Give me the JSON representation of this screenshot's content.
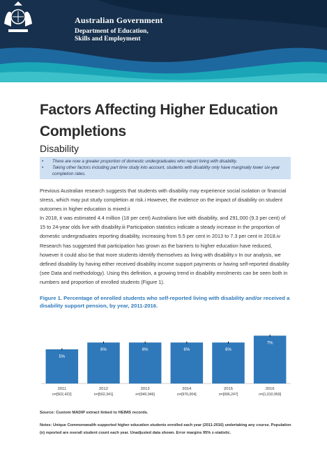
{
  "header": {
    "gov_title": "Australian Government",
    "dept_line1": "Department of Education,",
    "dept_line2": "Skills and Employment",
    "brand_colors": {
      "navy": "#16304d",
      "teal": "#1aa6b7",
      "blue": "#1e6fa8"
    }
  },
  "title": "Factors Affecting Higher Education Completions",
  "section": "Disability",
  "key_points": [
    "There are now a greater proportion of domestic undergraduates who report living with disability.",
    "Taking other factors including part time study into account, students with disability only have marginally lower six-year completion rates."
  ],
  "paragraphs": [
    "Previous Australian research suggests that students with disability may experience social isolation or financial stress, which may put study completion at risk.i However, the evidence on the impact of disability on student outcomes in higher education is mixed.ii",
    "In 2018, it was estimated 4.4 million (18 per cent) Australians live with disability, and 291,000 (9.3 per cent) of 15 to 24-year olds live with disability.iii Participation statistics indicate a steady increase in the proportion of domestic undergraduates reporting disability, increasing from 5.5 per cent in 2013 to 7.3 per cent in 2018.iv Research has suggested that participation has grown as the barriers to higher education have reduced, however it could also be that more students identify themselves as living with disability.v In our analysis, we defined disability by having either received disability income support payments or having self-reported disability (see Data and methodology). Using this definition, a growing trend in disability enrolments can be seen both in numbers and proportion of enrolled students (Figure 1)."
  ],
  "figure_title": "Figure 1. Percentage of enrolled students who self-reported living with disability and/or received a disability support pension, by year, 2011-2016.",
  "chart_data": {
    "type": "bar",
    "categories": [
      "2011",
      "2012",
      "2013",
      "2014",
      "2015",
      "2016"
    ],
    "category_sublabels": [
      "n=[502,422]",
      "n=[502,341]",
      "n=[940,946]",
      "n=[976,004]",
      "n=[996,247]",
      "n=[1,010,959]"
    ],
    "values": [
      5,
      6,
      6,
      6,
      6,
      7
    ],
    "value_labels": [
      "5%",
      "6%",
      "6%",
      "6%",
      "6%",
      "7%"
    ],
    "ylim": [
      0,
      10
    ],
    "bar_color": "#2f79ba",
    "grid": false,
    "legend": "none"
  },
  "source": "Source: Custom MADIP extract linked to HEIMS records.",
  "notes": "Notes: Unique Commonwealth supported higher education students enrolled each year (2011-2016) undertaking any course. Population (n) reported are overall student count each year. Unadjusted data shown. Error margins 95% z-statistic."
}
